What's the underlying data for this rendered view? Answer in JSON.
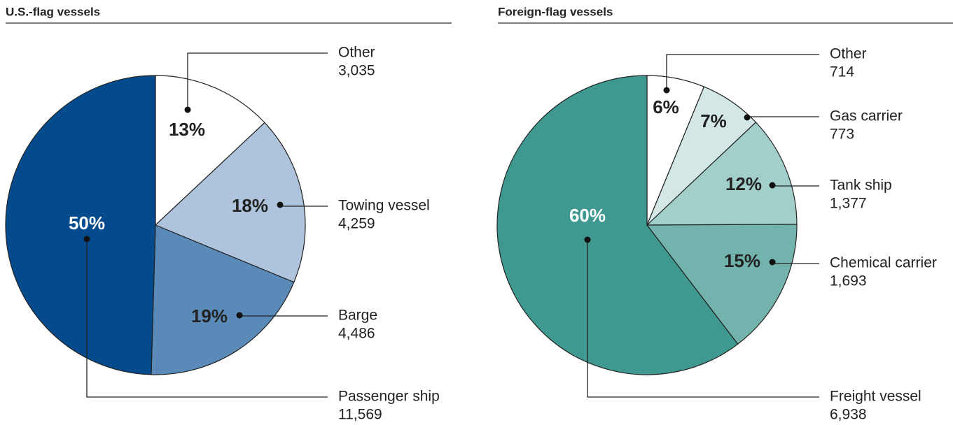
{
  "chart_data": [
    {
      "type": "pie",
      "title": "U.S.-flag vessels",
      "categories": [
        "Other",
        "Towing vessel",
        "Barge",
        "Passenger ship"
      ],
      "values": [
        3035,
        4259,
        4486,
        11569
      ],
      "value_labels": [
        "3,035",
        "4,259",
        "4,486",
        "11,569"
      ],
      "percent_labels": [
        "13%",
        "18%",
        "19%",
        "50%"
      ],
      "colors": [
        "#ffffff",
        "#aec4dc",
        "#5a8ab8",
        "#034b8d"
      ]
    },
    {
      "type": "pie",
      "title": "Foreign-flag vessels",
      "categories": [
        "Other",
        "Gas carrier",
        "Tank ship",
        "Chemical carrier",
        "Freight vessel"
      ],
      "values": [
        714,
        773,
        1377,
        1693,
        6938
      ],
      "value_labels": [
        "714",
        "773",
        "1,377",
        "1,693",
        "6,938"
      ],
      "percent_labels": [
        "6%",
        "7%",
        "12%",
        "15%",
        "60%"
      ],
      "colors": [
        "#ffffff",
        "#d3e8e6",
        "#a3cfca",
        "#72b3ad",
        "#3f9990"
      ]
    }
  ]
}
